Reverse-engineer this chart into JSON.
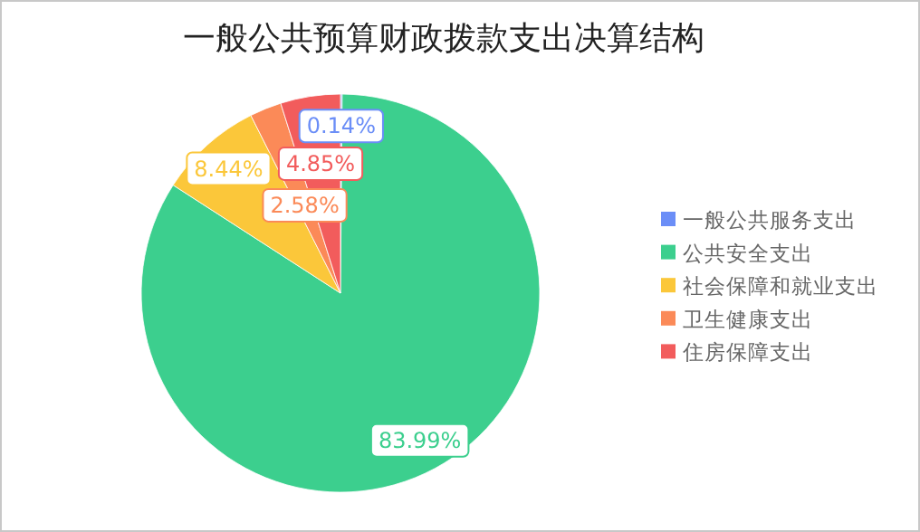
{
  "chart_data": {
    "type": "pie",
    "title": "一般公共预算财政拨款支出决算结构",
    "categories": [
      "一般公共服务支出",
      "公共安全支出",
      "社会保障和就业支出",
      "卫生健康支出",
      "住房保障支出"
    ],
    "values": [
      0.14,
      83.99,
      8.44,
      2.58,
      4.85
    ],
    "value_labels": [
      "0.14%",
      "83.99%",
      "8.44%",
      "2.58%",
      "4.85%"
    ],
    "colors": [
      "#6b8ef7",
      "#3ccf8e",
      "#fbc73a",
      "#fb8a58",
      "#f25c5c"
    ],
    "legend": "right"
  }
}
